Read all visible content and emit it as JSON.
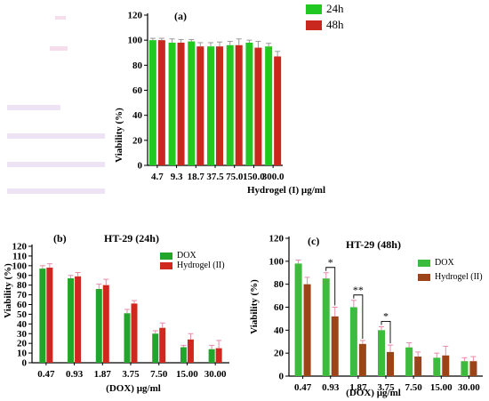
{
  "colors": {
    "green_a": "#22c822",
    "red_a": "#c8281e",
    "green_b": "#21a52a",
    "red_b": "#d0281e",
    "green_c": "#3dbb3d",
    "brown_c": "#9a4418",
    "error_a": "#999999",
    "error_b": "#e88aa8"
  },
  "chart_data": [
    {
      "panel": "(a)",
      "type": "bar",
      "title": "",
      "xlabel": "Hydrogel (I) µg/ml",
      "ylabel": "Viability (%)",
      "ylim": [
        0,
        120
      ],
      "yticks": [
        "0",
        "20",
        "40",
        "60",
        "80",
        "100",
        "120"
      ],
      "categories": [
        "4.7",
        "9.3",
        "18.7",
        "37.5",
        "75.0",
        "150.0",
        "300.0"
      ],
      "legend_position": "top-right",
      "series": [
        {
          "name": "24h",
          "values": [
            100,
            98,
            99,
            95,
            96,
            98,
            95
          ],
          "errors": [
            1.5,
            3,
            1.5,
            3,
            3,
            2,
            2.5
          ]
        },
        {
          "name": "48h",
          "values": [
            100,
            98,
            95,
            95,
            96,
            94,
            87
          ],
          "errors": [
            1.5,
            2.5,
            3,
            3.5,
            5,
            5,
            4
          ]
        }
      ]
    },
    {
      "panel": "(b)",
      "type": "bar",
      "title": "HT-29 (24h)",
      "xlabel": "(DOX) µg/ml",
      "ylabel": "Viability (%)",
      "ylim": [
        0,
        120
      ],
      "yticks": [
        "0",
        "10",
        "20",
        "30",
        "40",
        "50",
        "60",
        "70",
        "80",
        "90",
        "100",
        "110",
        "120"
      ],
      "categories": [
        "0.47",
        "0.93",
        "1.87",
        "3.75",
        "7.50",
        "15.00",
        "30.00"
      ],
      "legend_position": "top-right",
      "series": [
        {
          "name": "DOX",
          "values": [
            97,
            87,
            76,
            51,
            30,
            16,
            14
          ],
          "errors": [
            3,
            3,
            5,
            4,
            3,
            2,
            4
          ]
        },
        {
          "name": "Hydrogel (II)",
          "values": [
            98,
            89,
            80,
            61,
            36,
            24,
            15
          ],
          "errors": [
            4,
            4,
            6,
            3,
            5,
            6,
            8
          ]
        }
      ]
    },
    {
      "panel": "(c)",
      "type": "bar",
      "title": "HT-29 (48h)",
      "xlabel": "(DOX) µg/ml",
      "ylabel": "Viability (%)",
      "ylim": [
        0,
        120
      ],
      "yticks": [
        "0",
        "20",
        "40",
        "60",
        "80",
        "100",
        "120"
      ],
      "categories": [
        "0.47",
        "0.93",
        "1.87",
        "3.75",
        "7.50",
        "15.00",
        "30.00"
      ],
      "legend_position": "top-right",
      "series": [
        {
          "name": "DOX",
          "values": [
            98,
            85,
            60,
            40,
            25,
            16,
            13
          ],
          "errors": [
            3,
            5,
            6,
            3,
            4,
            4,
            3
          ]
        },
        {
          "name": "Hydrogel (II)",
          "values": [
            80,
            52,
            28,
            21,
            17,
            18,
            13
          ],
          "errors": [
            6,
            8,
            3,
            6,
            4,
            8,
            4
          ]
        }
      ],
      "significance": [
        {
          "category": "0.93",
          "label": "*"
        },
        {
          "category": "1.87",
          "label": "**"
        },
        {
          "category": "3.75",
          "label": "*"
        }
      ]
    }
  ]
}
